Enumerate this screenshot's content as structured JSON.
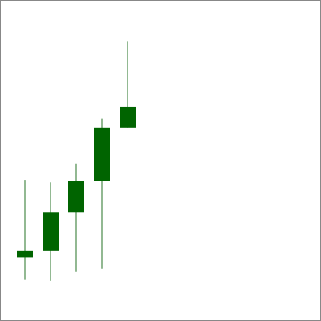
{
  "chart_data": {
    "type": "candlestick",
    "title": "",
    "xlabel": "",
    "ylabel": "",
    "x": [
      1,
      2,
      3,
      4,
      5
    ],
    "ylim": [
      0,
      100
    ],
    "grid": false,
    "legend": "none",
    "candles": [
      {
        "open": 20.0,
        "close": 21.9,
        "high": 44.2,
        "low": 12.9
      },
      {
        "open": 21.9,
        "close": 34.1,
        "high": 43.4,
        "low": 12.6
      },
      {
        "open": 34.1,
        "close": 43.9,
        "high": 49.3,
        "low": 15.4
      },
      {
        "open": 43.9,
        "close": 60.6,
        "high": 63.4,
        "low": 16.4
      },
      {
        "open": 60.6,
        "close": 67.1,
        "high": 87.6,
        "low": 60.6
      }
    ],
    "colors": {
      "up_body": "#006400",
      "wick": "#4a8a4a",
      "frame": "#888888"
    }
  }
}
